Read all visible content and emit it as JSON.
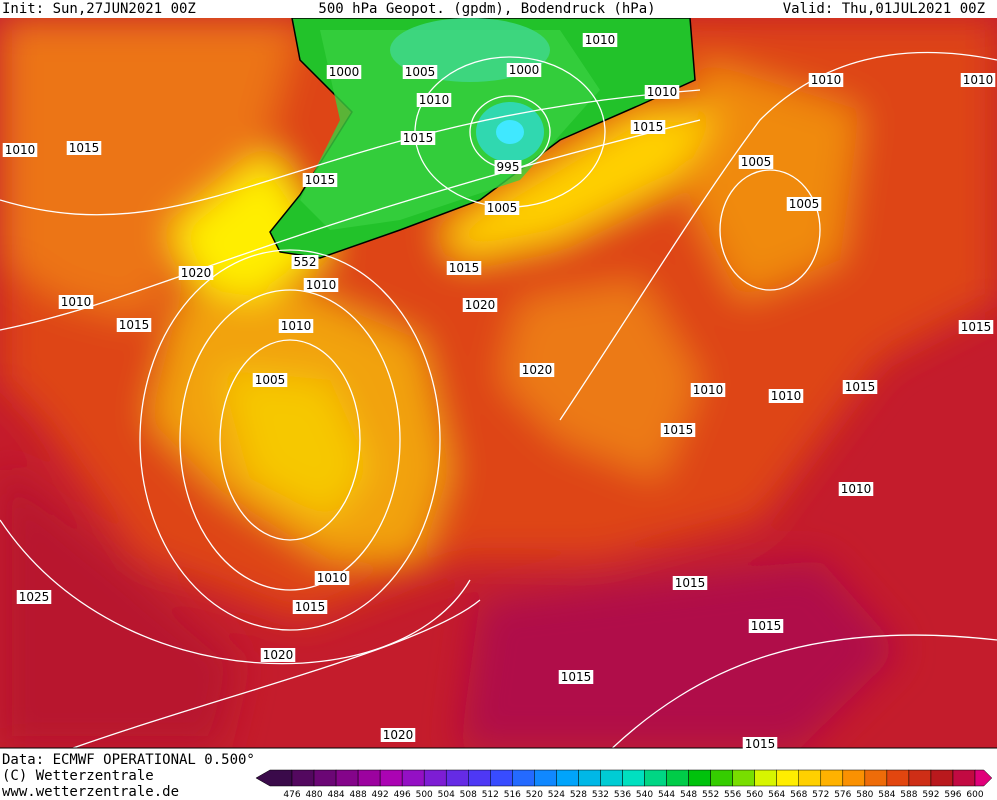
{
  "header": {
    "init": "Init: Sun,27JUN2021 00Z",
    "title": "500 hPa Geopot. (gpdm), Bodendruck (hPa)",
    "valid": "Valid: Thu,01JUL2021 00Z"
  },
  "footer": {
    "data": "Data: ECMWF OPERATIONAL 0.500°",
    "copyright": "(C) Wetterzentrale",
    "url": "www.wetterzentrale.de"
  },
  "isobar_labels": [
    1010,
    1015,
    1000,
    1005,
    1010,
    1015,
    1015,
    1000,
    1010,
    1010,
    1015,
    995,
    1005,
    552,
    1010,
    1020,
    1015,
    1020,
    1010,
    1015,
    1010,
    1005,
    1010,
    1005,
    1005,
    1015,
    1020,
    1010,
    1010,
    1015,
    1015,
    1010,
    1010,
    1015,
    1015,
    1015,
    1025,
    1020,
    1015,
    1020,
    1015,
    1010
  ],
  "colorbar": {
    "labels": [
      476,
      480,
      484,
      488,
      492,
      496,
      500,
      504,
      508,
      512,
      516,
      520,
      524,
      528,
      532,
      536,
      540,
      544,
      548,
      552,
      556,
      560,
      564,
      568,
      572,
      576,
      580,
      584,
      588,
      592,
      596,
      600
    ]
  }
}
